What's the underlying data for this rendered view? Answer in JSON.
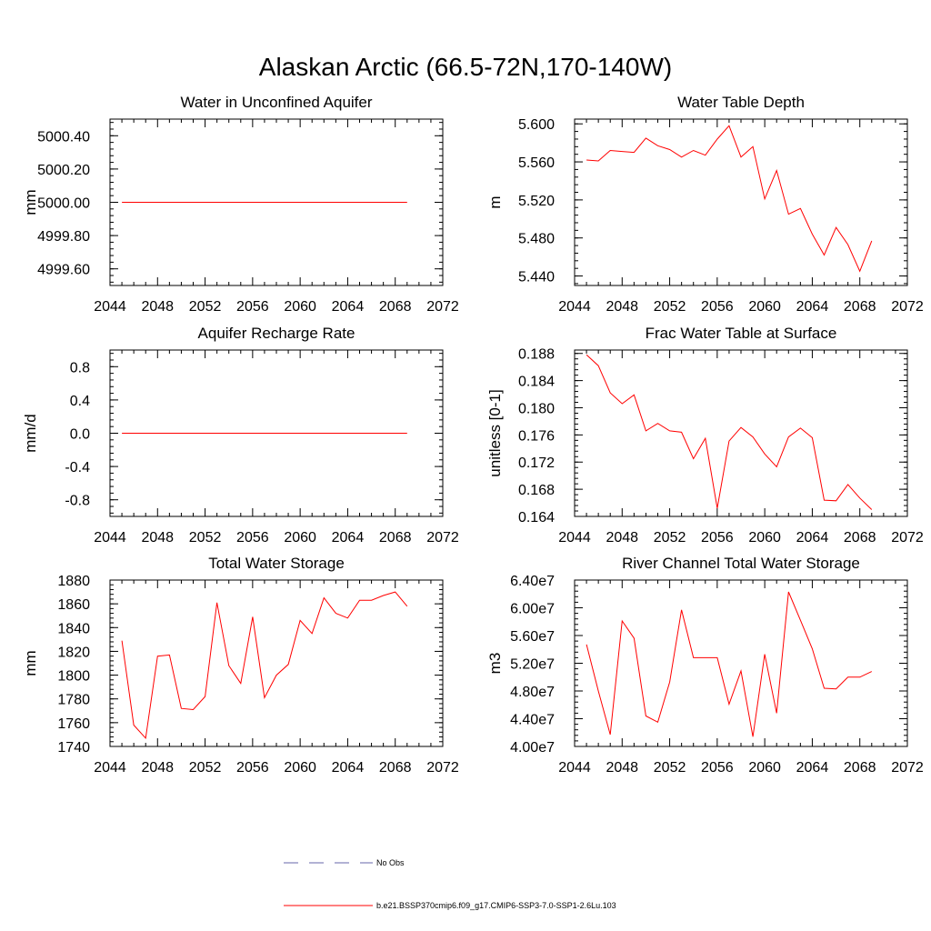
{
  "title": "Alaskan Arctic (66.5-72N,170-140W)",
  "legend": {
    "entries": [
      {
        "label": "No Obs",
        "color": "#6666aa",
        "dash": true
      },
      {
        "label": "b.e21.BSSP370cmip6.f09_g17.CMIP6-SSP3-7.0-SSP1-2.6Lu.103",
        "color": "#ff0000",
        "dash": false
      }
    ]
  },
  "chart_data": [
    {
      "type": "line",
      "title": "Water in Unconfined Aquifer",
      "xlabel": "",
      "ylabel": "mm",
      "xlim": [
        2044,
        2072
      ],
      "ylim": [
        4999.5,
        5000.5
      ],
      "xticks": [
        2044,
        2048,
        2052,
        2056,
        2060,
        2064,
        2068,
        2072
      ],
      "xtick_labels": [
        "2044",
        "2048",
        "2052",
        "2056",
        "2060",
        "2064",
        "2068",
        "2072"
      ],
      "yticks": [
        4999.6,
        4999.8,
        5000.0,
        5000.2,
        5000.4
      ],
      "ytick_labels": [
        "4999.60",
        "4999.80",
        "5000.00",
        "5000.20",
        "5000.40"
      ],
      "yminor": 0.04,
      "x": [
        2045,
        2046,
        2047,
        2048,
        2049,
        2050,
        2051,
        2052,
        2053,
        2054,
        2055,
        2056,
        2057,
        2058,
        2059,
        2060,
        2061,
        2062,
        2063,
        2064,
        2065,
        2066,
        2067,
        2068,
        2069
      ],
      "series": [
        {
          "values": [
            5000,
            5000,
            5000,
            5000,
            5000,
            5000,
            5000,
            5000,
            5000,
            5000,
            5000,
            5000,
            5000,
            5000,
            5000,
            5000,
            5000,
            5000,
            5000,
            5000,
            5000,
            5000,
            5000,
            5000,
            5000
          ]
        }
      ]
    },
    {
      "type": "line",
      "title": "Water Table Depth",
      "xlabel": "",
      "ylabel": "m",
      "xlim": [
        2044,
        2072
      ],
      "ylim": [
        5.43,
        5.605
      ],
      "xticks": [
        2044,
        2048,
        2052,
        2056,
        2060,
        2064,
        2068,
        2072
      ],
      "xtick_labels": [
        "2044",
        "2048",
        "2052",
        "2056",
        "2060",
        "2064",
        "2068",
        "2072"
      ],
      "yticks": [
        5.44,
        5.48,
        5.52,
        5.56,
        5.6
      ],
      "ytick_labels": [
        "5.440",
        "5.480",
        "5.520",
        "5.560",
        "5.600"
      ],
      "yminor": 0.008,
      "x": [
        2045,
        2046,
        2047,
        2048,
        2049,
        2050,
        2051,
        2052,
        2053,
        2054,
        2055,
        2056,
        2057,
        2058,
        2059,
        2060,
        2061,
        2062,
        2063,
        2064,
        2065,
        2066,
        2067,
        2068,
        2069
      ],
      "series": [
        {
          "values": [
            5.562,
            5.561,
            5.572,
            5.571,
            5.57,
            5.585,
            5.577,
            5.573,
            5.565,
            5.572,
            5.567,
            5.584,
            5.598,
            5.565,
            5.576,
            5.521,
            5.551,
            5.505,
            5.511,
            5.484,
            5.462,
            5.491,
            5.473,
            5.445,
            5.477
          ]
        }
      ]
    },
    {
      "type": "line",
      "title": "Aquifer Recharge Rate",
      "xlabel": "",
      "ylabel": "mm/d",
      "xlim": [
        2044,
        2072
      ],
      "ylim": [
        -1.0,
        1.0
      ],
      "xticks": [
        2044,
        2048,
        2052,
        2056,
        2060,
        2064,
        2068,
        2072
      ],
      "xtick_labels": [
        "2044",
        "2048",
        "2052",
        "2056",
        "2060",
        "2064",
        "2068",
        "2072"
      ],
      "yticks": [
        -0.8,
        -0.4,
        0.0,
        0.4,
        0.8
      ],
      "ytick_labels": [
        "-0.8",
        "-0.4",
        "0.0",
        "0.4",
        "0.8"
      ],
      "yminor": 0.08,
      "x": [
        2045,
        2046,
        2047,
        2048,
        2049,
        2050,
        2051,
        2052,
        2053,
        2054,
        2055,
        2056,
        2057,
        2058,
        2059,
        2060,
        2061,
        2062,
        2063,
        2064,
        2065,
        2066,
        2067,
        2068,
        2069
      ],
      "series": [
        {
          "values": [
            0,
            0,
            0,
            0,
            0,
            0,
            0,
            0,
            0,
            0,
            0,
            0,
            0,
            0,
            0,
            0,
            0,
            0,
            0,
            0,
            0,
            0,
            0,
            0,
            0
          ]
        }
      ]
    },
    {
      "type": "line",
      "title": "Frac Water Table at Surface",
      "xlabel": "",
      "ylabel": "unitless [0-1]",
      "xlim": [
        2044,
        2072
      ],
      "ylim": [
        0.164,
        0.1885
      ],
      "xticks": [
        2044,
        2048,
        2052,
        2056,
        2060,
        2064,
        2068,
        2072
      ],
      "xtick_labels": [
        "2044",
        "2048",
        "2052",
        "2056",
        "2060",
        "2064",
        "2068",
        "2072"
      ],
      "yticks": [
        0.164,
        0.168,
        0.172,
        0.176,
        0.18,
        0.184,
        0.188
      ],
      "ytick_labels": [
        "0.164",
        "0.168",
        "0.172",
        "0.176",
        "0.180",
        "0.184",
        "0.188"
      ],
      "yminor": 0.0008,
      "x": [
        2045,
        2046,
        2047,
        2048,
        2049,
        2050,
        2051,
        2052,
        2053,
        2054,
        2055,
        2056,
        2057,
        2058,
        2059,
        2060,
        2061,
        2062,
        2063,
        2064,
        2065,
        2066,
        2067,
        2068,
        2069
      ],
      "series": [
        {
          "values": [
            0.1878,
            0.1862,
            0.1822,
            0.1806,
            0.1819,
            0.1766,
            0.1777,
            0.1766,
            0.1764,
            0.1725,
            0.1755,
            0.1652,
            0.1751,
            0.1771,
            0.1757,
            0.1732,
            0.1713,
            0.1757,
            0.177,
            0.1756,
            0.1664,
            0.1663,
            0.1687,
            0.1667,
            0.165
          ]
        }
      ]
    },
    {
      "type": "line",
      "title": "Total Water Storage",
      "xlabel": "",
      "ylabel": "mm",
      "xlim": [
        2044,
        2072
      ],
      "ylim": [
        1740,
        1880
      ],
      "xticks": [
        2044,
        2048,
        2052,
        2056,
        2060,
        2064,
        2068,
        2072
      ],
      "xtick_labels": [
        "2044",
        "2048",
        "2052",
        "2056",
        "2060",
        "2064",
        "2068",
        "2072"
      ],
      "yticks": [
        1740,
        1760,
        1780,
        1800,
        1820,
        1840,
        1860,
        1880
      ],
      "ytick_labels": [
        "1740",
        "1760",
        "1780",
        "1800",
        "1820",
        "1840",
        "1860",
        "1880"
      ],
      "yminor": 4,
      "x": [
        2045,
        2046,
        2047,
        2048,
        2049,
        2050,
        2051,
        2052,
        2053,
        2054,
        2055,
        2056,
        2057,
        2058,
        2059,
        2060,
        2061,
        2062,
        2063,
        2064,
        2065,
        2066,
        2067,
        2068,
        2069
      ],
      "series": [
        {
          "values": [
            1829,
            1758,
            1747,
            1816,
            1817,
            1772,
            1771,
            1782,
            1861,
            1808,
            1793,
            1849,
            1781,
            1800,
            1809,
            1846,
            1835,
            1865,
            1852,
            1848,
            1863,
            1863,
            1867,
            1870,
            1858
          ]
        }
      ]
    },
    {
      "type": "line",
      "title": "River Channel Total Water Storage",
      "xlabel": "",
      "ylabel": "m3",
      "xlim": [
        2044,
        2072
      ],
      "ylim": [
        40000000,
        64000000
      ],
      "xticks": [
        2044,
        2048,
        2052,
        2056,
        2060,
        2064,
        2068,
        2072
      ],
      "xtick_labels": [
        "2044",
        "2048",
        "2052",
        "2056",
        "2060",
        "2064",
        "2068",
        "2072"
      ],
      "yticks": [
        40000000,
        44000000,
        48000000,
        52000000,
        56000000,
        60000000,
        64000000
      ],
      "ytick_labels": [
        "4.00e7",
        "4.40e7",
        "4.80e7",
        "5.20e7",
        "5.60e7",
        "6.00e7",
        "6.40e7"
      ],
      "yminor": 800000,
      "x": [
        2045,
        2046,
        2047,
        2048,
        2049,
        2050,
        2051,
        2052,
        2053,
        2054,
        2055,
        2056,
        2057,
        2058,
        2059,
        2060,
        2061,
        2062,
        2063,
        2064,
        2065,
        2066,
        2067,
        2068,
        2069
      ],
      "series": [
        {
          "values": [
            54700000,
            48000000,
            41700000,
            58100000,
            55600000,
            44400000,
            43500000,
            49300000,
            59700000,
            52800000,
            52800000,
            52800000,
            46100000,
            50900000,
            41400000,
            53300000,
            44800000,
            62300000,
            58200000,
            54100000,
            48400000,
            48300000,
            50000000,
            50000000,
            50800000
          ]
        }
      ]
    }
  ]
}
